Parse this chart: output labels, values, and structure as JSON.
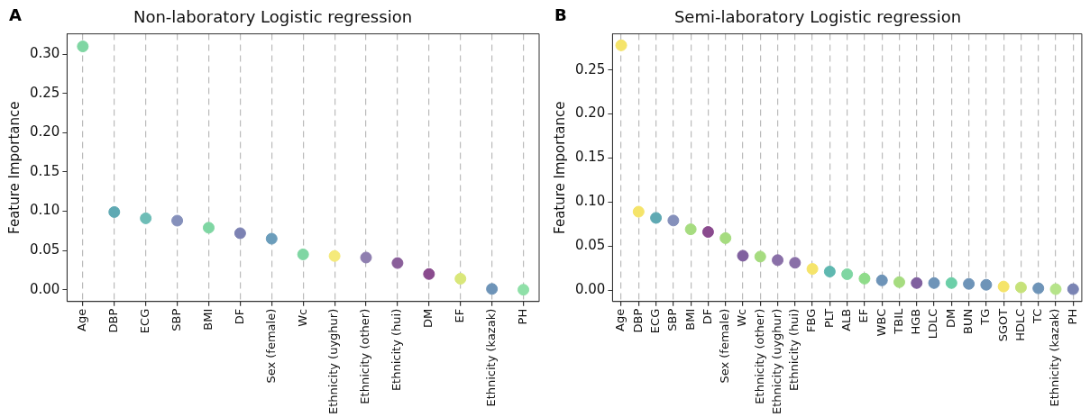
{
  "chart_data": [
    {
      "type": "scatter",
      "title": "Non-laboratory Logistic regression",
      "ylabel": "Feature Importance",
      "annotations": [
        "A"
      ],
      "marker": "circle",
      "grid": "x",
      "categories": [
        "Age",
        "DBP",
        "ECG",
        "SBP",
        "BMI",
        "DF",
        "Sex (female)",
        "Wc",
        "Ethnicity (uyghur)",
        "Ethnicity (other)",
        "Ethnicity (hui)",
        "DM",
        "EF",
        "Ethnicity (kazak)",
        "PH"
      ],
      "values": [
        0.31,
        0.099,
        0.091,
        0.088,
        0.079,
        0.072,
        0.065,
        0.045,
        0.043,
        0.041,
        0.034,
        0.02,
        0.014,
        0.001,
        0.0
      ],
      "colors": [
        "#7fd6a3",
        "#5fa9b3",
        "#6ebdb7",
        "#8590bb",
        "#7fd6a3",
        "#7c82b3",
        "#6b9dbb",
        "#7fd6a3",
        "#f5ea7a",
        "#8f7fb0",
        "#8a5f9a",
        "#8a4b8e",
        "#d9e77a",
        "#6e94b8",
        "#8fe0a8"
      ],
      "ylim": [
        -0.015,
        0.326
      ],
      "yticks": [
        {
          "value": 0,
          "label": "0.00"
        },
        {
          "value": 0.05,
          "label": "0.05"
        },
        {
          "value": 0.1,
          "label": "0.10"
        },
        {
          "value": 0.15,
          "label": "0.15"
        },
        {
          "value": 0.2,
          "label": "0.20"
        },
        {
          "value": 0.25,
          "label": "0.25"
        },
        {
          "value": 0.3,
          "label": "0.30"
        }
      ]
    },
    {
      "type": "scatter",
      "title": "Semi-laboratory Logistic regression",
      "ylabel": "Feature Importance",
      "annotations": [
        "B"
      ],
      "marker": "circle",
      "grid": "x",
      "categories": [
        "Age",
        "DBP",
        "ECG",
        "SBP",
        "BMI",
        "DF",
        "Sex (female)",
        "Wc",
        "Ethnicity (other)",
        "Ethnicity (uyghur)",
        "Ethnicity (hui)",
        "FBG",
        "PLT",
        "ALB",
        "EF",
        "WBC",
        "TBIL",
        "HGB",
        "LDLC",
        "DM",
        "BUN",
        "TG",
        "SGOT",
        "HDLC",
        "TC",
        "Ethnicity (kazak)",
        "PH"
      ],
      "values": [
        0.278,
        0.089,
        0.082,
        0.079,
        0.069,
        0.066,
        0.059,
        0.039,
        0.038,
        0.034,
        0.031,
        0.024,
        0.021,
        0.018,
        0.013,
        0.011,
        0.009,
        0.008,
        0.008,
        0.008,
        0.007,
        0.006,
        0.004,
        0.003,
        0.002,
        0.001,
        0.001
      ],
      "colors": [
        "#f5e46a",
        "#f5e46a",
        "#5fa9b3",
        "#8590bb",
        "#a6dc80",
        "#8a4b8e",
        "#a6dc80",
        "#80609f",
        "#a6dc80",
        "#8a70a8",
        "#8a70a8",
        "#f5e46a",
        "#5fb8b0",
        "#7fd6a3",
        "#8fdc8a",
        "#6e94b8",
        "#a6dc80",
        "#80609f",
        "#6e94b8",
        "#6ccfa8",
        "#6e94b8",
        "#6e94b8",
        "#f5e46a",
        "#c6e27a",
        "#6e94b8",
        "#b6e48a",
        "#7a84b4"
      ],
      "ylim": [
        -0.013,
        0.291
      ],
      "yticks": [
        {
          "value": 0,
          "label": "0.00"
        },
        {
          "value": 0.05,
          "label": "0.05"
        },
        {
          "value": 0.1,
          "label": "0.10"
        },
        {
          "value": 0.15,
          "label": "0.15"
        },
        {
          "value": 0.2,
          "label": "0.20"
        },
        {
          "value": 0.25,
          "label": "0.25"
        }
      ]
    }
  ]
}
